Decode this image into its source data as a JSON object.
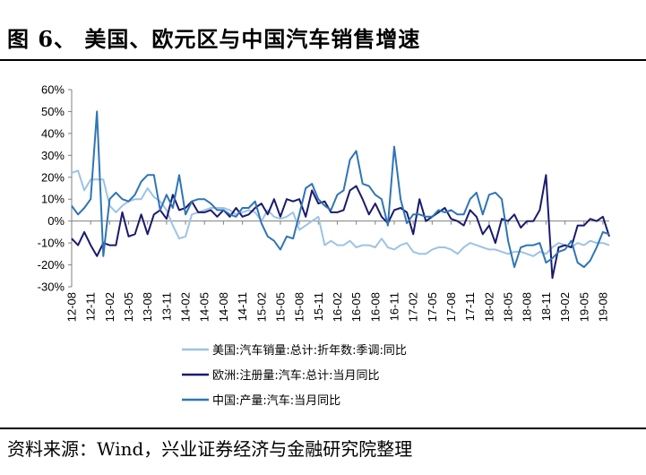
{
  "figure": {
    "title": "图 6、  美国、欧元区与中国汽车销售增速",
    "source": "资料来源：Wind，兴业证券经济与金融研究院整理"
  },
  "chart_data": {
    "type": "line",
    "title": "",
    "xlabel": "",
    "ylabel": "",
    "ylim": [
      -30,
      60
    ],
    "yticks": [
      "60%",
      "50%",
      "40%",
      "30%",
      "20%",
      "10%",
      "0%",
      "-10%",
      "-20%",
      "-30%"
    ],
    "ytick_values": [
      60,
      50,
      40,
      30,
      20,
      10,
      0,
      -10,
      -20,
      -30
    ],
    "grid": false,
    "legend_position": "bottom",
    "x": [
      "12-08",
      "12-09",
      "12-10",
      "12-11",
      "12-12",
      "13-01",
      "13-02",
      "13-03",
      "13-04",
      "13-05",
      "13-06",
      "13-07",
      "13-08",
      "13-09",
      "13-10",
      "13-11",
      "13-12",
      "14-01",
      "14-02",
      "14-03",
      "14-04",
      "14-05",
      "14-06",
      "14-07",
      "14-08",
      "14-09",
      "14-10",
      "14-11",
      "14-12",
      "15-01",
      "15-02",
      "15-03",
      "15-04",
      "15-05",
      "15-06",
      "15-07",
      "15-08",
      "15-09",
      "15-10",
      "15-11",
      "15-12",
      "16-01",
      "16-02",
      "16-03",
      "16-04",
      "16-05",
      "16-06",
      "16-07",
      "16-08",
      "16-09",
      "16-10",
      "16-11",
      "16-12",
      "17-01",
      "17-02",
      "17-03",
      "17-04",
      "17-05",
      "17-06",
      "17-07",
      "17-08",
      "17-09",
      "17-10",
      "17-11",
      "17-12",
      "18-01",
      "18-02",
      "18-03",
      "18-04",
      "18-05",
      "18-06",
      "18-07",
      "18-08",
      "18-09",
      "18-10",
      "18-11",
      "18-12",
      "19-01",
      "19-02",
      "19-03",
      "19-04",
      "19-05",
      "19-06",
      "19-07",
      "19-08",
      "19-09"
    ],
    "xtick_labels": [
      "12-08",
      "12-11",
      "13-02",
      "13-05",
      "13-08",
      "13-11",
      "14-02",
      "14-05",
      "14-08",
      "14-11",
      "15-02",
      "15-05",
      "15-08",
      "15-11",
      "16-02",
      "16-05",
      "16-08",
      "16-11",
      "17-02",
      "17-05",
      "17-08",
      "17-11",
      "18-02",
      "18-05",
      "18-08",
      "18-11",
      "19-02",
      "19-05",
      "19-08"
    ],
    "series": [
      {
        "name": "美国:汽车销量:总计:折年数:季调:同比",
        "color": "#9dc3e6",
        "values": [
          22,
          23,
          14,
          19,
          19,
          19,
          7,
          4,
          7,
          9,
          10,
          10,
          15,
          11,
          9,
          5,
          -2,
          -8,
          -7,
          3,
          4,
          5,
          6,
          6,
          6,
          5,
          3,
          4,
          5,
          4,
          0,
          5,
          2,
          1,
          2,
          4,
          -4,
          -2,
          0,
          2,
          -11,
          -9,
          -11,
          -11,
          -9,
          -12,
          -11,
          -11,
          -12,
          -8,
          -12,
          -13,
          -11,
          -10,
          -14,
          -15,
          -15,
          -13,
          -12,
          -12,
          -13,
          -15,
          -12,
          -10,
          -11,
          -12,
          -13,
          -13,
          -14,
          -15,
          -14,
          -14,
          -15,
          -16,
          -14,
          -15,
          -12,
          -10,
          -11,
          -12,
          -10,
          -11,
          -9,
          -10,
          -10,
          -11
        ]
      },
      {
        "name": "欧洲:注册量:汽车:总计:当月同比",
        "color": "#1a1a6e",
        "values": [
          -8,
          -11,
          -5,
          -11,
          -16,
          -10,
          -11,
          -11,
          4,
          -7,
          -6,
          3,
          -6,
          3,
          5,
          1,
          12,
          5,
          6,
          9,
          4,
          4,
          5,
          2,
          5,
          2,
          6,
          2,
          3,
          6,
          8,
          3,
          10,
          2,
          10,
          9,
          10,
          2,
          14,
          8,
          9,
          4,
          4,
          5,
          14,
          16,
          10,
          3,
          8,
          2,
          -1,
          5,
          6,
          4,
          -6,
          10,
          0,
          2,
          4,
          6,
          1,
          0,
          -2,
          5,
          2,
          -6,
          -2,
          -10,
          1,
          0,
          3,
          -3,
          0,
          0,
          5,
          21,
          -26,
          -12,
          -11,
          -12,
          -2,
          -2,
          1,
          0,
          2,
          -7
        ]
      },
      {
        "name": "中国:产量:汽车:当月同比",
        "color": "#2e75b6",
        "values": [
          7,
          3,
          6,
          10,
          50,
          -16,
          10,
          13,
          10,
          9,
          12,
          18,
          21,
          21,
          5,
          12,
          6,
          21,
          3,
          9,
          10,
          10,
          8,
          5,
          5,
          3,
          2,
          6,
          6,
          9,
          -1,
          -7,
          -9,
          -13,
          -7,
          -8,
          3,
          15,
          17,
          10,
          7,
          5,
          12,
          14,
          28,
          32,
          17,
          16,
          12,
          10,
          -2,
          34,
          10,
          -1,
          3,
          3,
          2,
          2,
          5,
          4,
          5,
          3,
          3,
          10,
          13,
          3,
          12,
          13,
          10,
          -9,
          -21,
          -12,
          -11,
          -11,
          -10,
          -19,
          -17,
          -14,
          -13,
          -9,
          -19,
          -21,
          -18,
          -12,
          -5,
          -6
        ]
      }
    ]
  }
}
